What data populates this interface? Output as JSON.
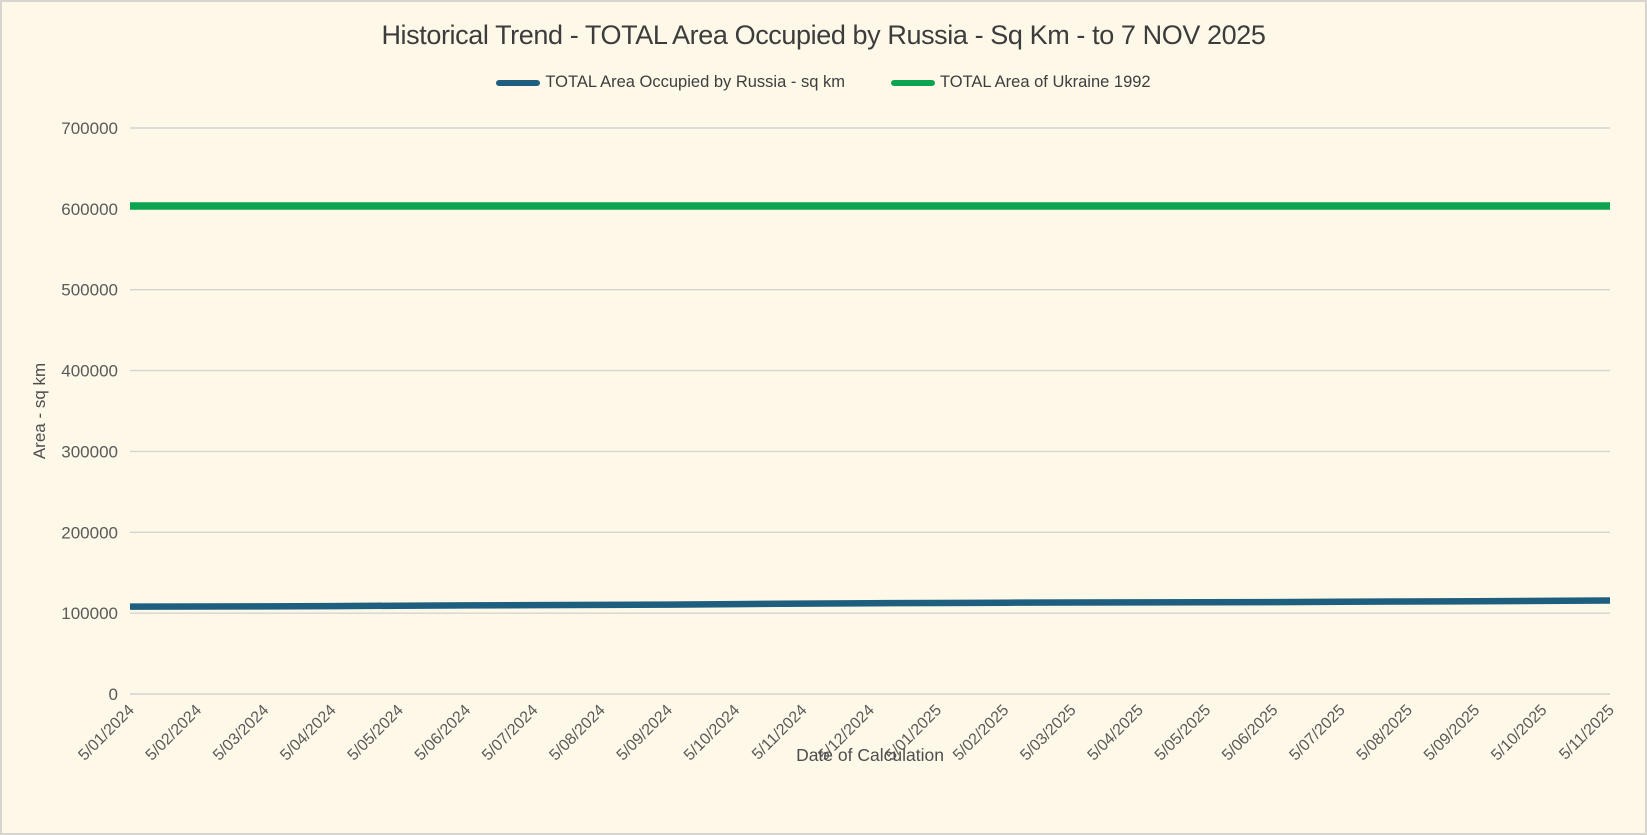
{
  "title": "Historical Trend - TOTAL Area Occupied by Russia - Sq Km - to 7 NOV 2025",
  "legend": [
    {
      "label": "TOTAL Area Occupied by Russia - sq km",
      "color": "#1E5E7E"
    },
    {
      "label": "TOTAL Area of Ukraine 1992",
      "color": "#0CA44E"
    }
  ],
  "colors": {
    "background": "#FDF8E8",
    "border": "#D8D5D1",
    "gridline": "#D6D4CF",
    "title_text": "#3C3C3C",
    "tick_text": "#5A5A5A",
    "series_russia": "#1E5E7E",
    "series_ukraine": "#0CA44E"
  },
  "chart_data": {
    "type": "line",
    "title": "Historical Trend - TOTAL Area Occupied by Russia - Sq Km - to 7 NOV 2025",
    "xlabel": "Date of Calculation",
    "ylabel": "Area - sq km",
    "grid": true,
    "legend_position": "top",
    "ylim": [
      0,
      700000
    ],
    "yticks": [
      0,
      100000,
      200000,
      300000,
      400000,
      500000,
      600000,
      700000
    ],
    "x": [
      "5/01/2024",
      "5/02/2024",
      "5/03/2024",
      "5/04/2024",
      "5/05/2024",
      "5/06/2024",
      "5/07/2024",
      "5/08/2024",
      "5/09/2024",
      "5/10/2024",
      "5/11/2024",
      "5/12/2024",
      "5/01/2025",
      "5/02/2025",
      "5/03/2025",
      "5/04/2025",
      "5/05/2025",
      "5/06/2025",
      "5/07/2025",
      "5/08/2025",
      "5/09/2025",
      "5/10/2025",
      "5/11/2025"
    ],
    "series": [
      {
        "name": "TOTAL Area Occupied by Russia - sq km",
        "color": "#1E5E7E",
        "stroke_width": 6.5,
        "values": [
          108000,
          108200,
          108400,
          108700,
          109200,
          109600,
          109900,
          110200,
          110600,
          111200,
          111700,
          112300,
          112600,
          112900,
          113100,
          113300,
          113500,
          113700,
          114100,
          114400,
          114700,
          115100,
          115600
        ]
      },
      {
        "name": "TOTAL Area of Ukraine 1992",
        "color": "#0CA44E",
        "stroke_width": 7.5,
        "constant": 603550
      }
    ]
  }
}
